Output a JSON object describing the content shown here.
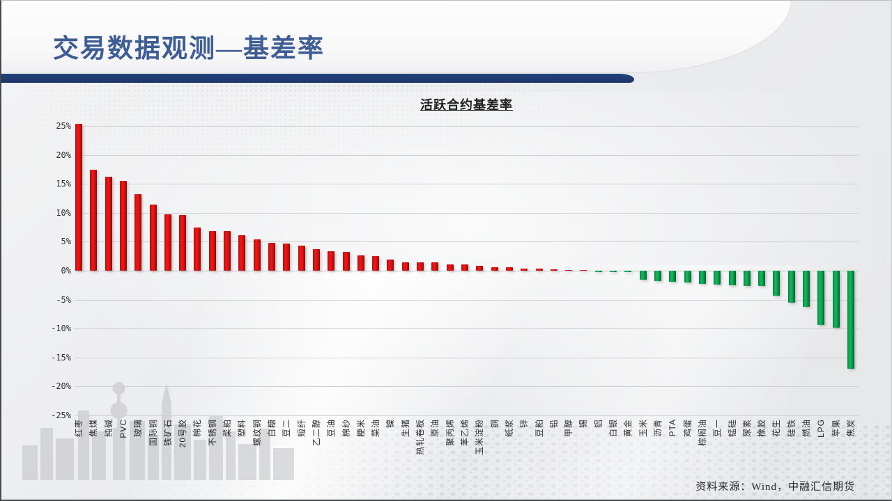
{
  "slide": {
    "title": "交易数据观测—基差率",
    "source": "资料来源：Wind，中融汇信期货"
  },
  "chart_data": {
    "type": "bar",
    "title": "活跃合约基差率",
    "xlabel": "",
    "ylabel": "",
    "unit": "%",
    "ylim": [
      -25,
      25
    ],
    "ytick_step": 5,
    "ytick_labels": [
      "25%",
      "20%",
      "15%",
      "10%",
      "5%",
      "0%",
      "-5%",
      "-10%",
      "-15%",
      "-20%",
      "-25%"
    ],
    "grid": true,
    "legend": "none",
    "positive_color": "#dd1111",
    "negative_color": "#0ca152",
    "categories": [
      "红枣",
      "焦煤",
      "纯碱",
      "PVC",
      "玻璃",
      "国际铜",
      "铁矿石",
      "20号胶",
      "棉花",
      "不锈钢",
      "菜粕",
      "塑料",
      "螺纹钢",
      "白糖",
      "豆二",
      "短纤",
      "乙二醇",
      "豆油",
      "棉纱",
      "粳米",
      "菜油",
      "镍",
      "生猪",
      "热轧卷板",
      "原油",
      "聚丙烯",
      "苯乙烯",
      "玉米淀粉",
      "铜",
      "纸浆",
      "锌",
      "豆粕",
      "铅",
      "甲醇",
      "锡",
      "铝",
      "白银",
      "黄金",
      "玉米",
      "沥青",
      "PTA",
      "鸡蛋",
      "棕榈油",
      "豆一",
      "锰硅",
      "尿素",
      "橡胶",
      "花生",
      "硅铁",
      "燃油",
      "LPG",
      "苹果",
      "焦炭"
    ],
    "values": [
      25.4,
      17.4,
      16.2,
      15.5,
      13.2,
      11.4,
      9.7,
      9.6,
      7.4,
      6.9,
      6.8,
      6.1,
      5.4,
      4.8,
      4.7,
      4.3,
      3.7,
      3.4,
      3.3,
      2.7,
      2.5,
      1.9,
      1.5,
      1.5,
      1.4,
      1.1,
      1.1,
      0.9,
      0.6,
      0.6,
      0.4,
      0.4,
      0.2,
      0.15,
      0.05,
      -0.2,
      -0.25,
      -0.3,
      -1.6,
      -1.75,
      -1.9,
      -2.1,
      -2.3,
      -2.4,
      -2.5,
      -2.6,
      -2.7,
      -4.3,
      -5.5,
      -6.3,
      -9.4,
      -9.8,
      -17.0
    ]
  }
}
